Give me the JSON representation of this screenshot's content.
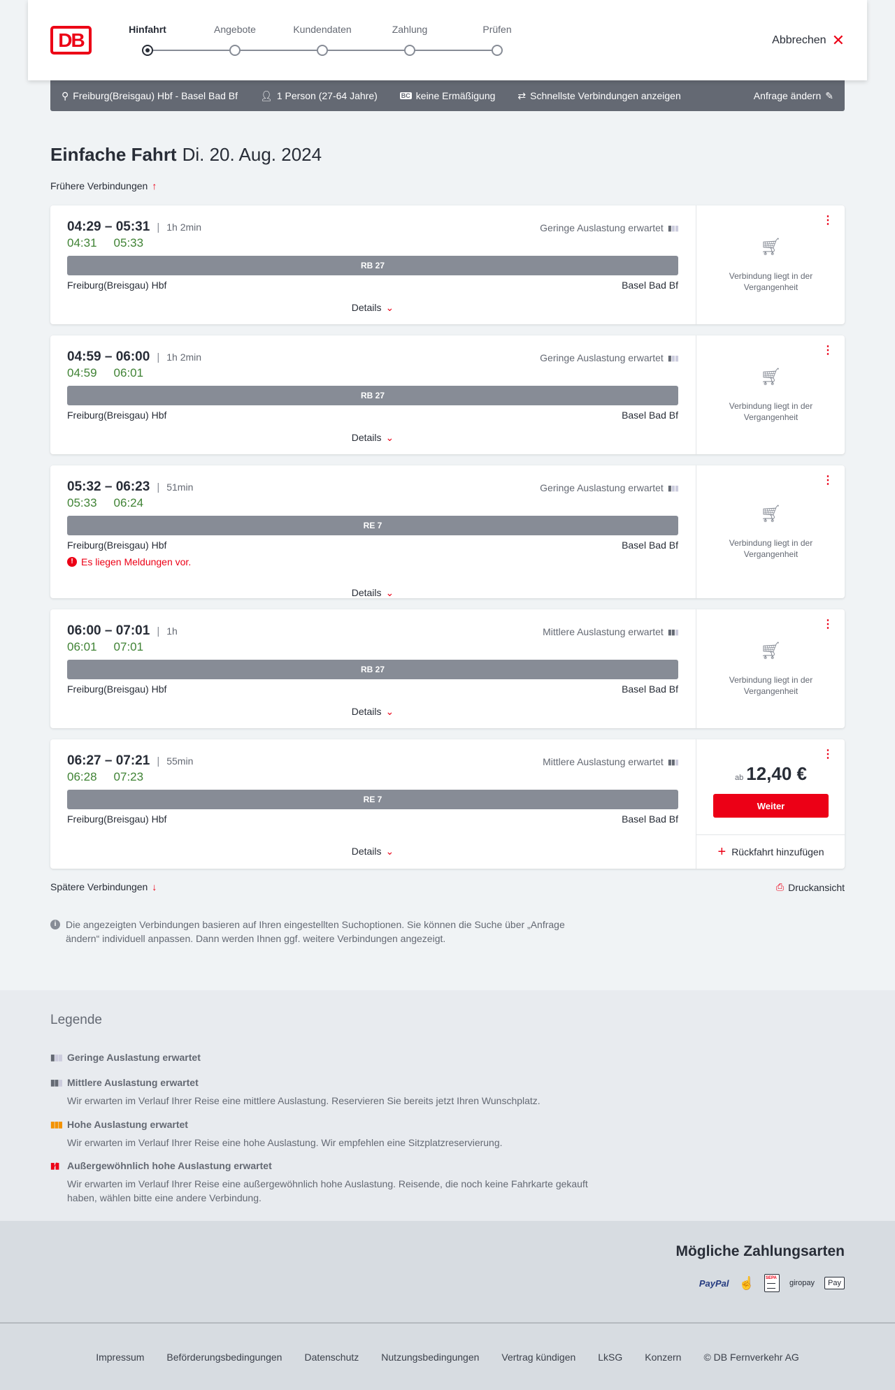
{
  "header": {
    "logo": "DB",
    "steps": [
      "Hinfahrt",
      "Angebote",
      "Kundendaten",
      "Zahlung",
      "Prüfen"
    ],
    "active_step": 0,
    "cancel": "Abbrechen"
  },
  "filter": {
    "route": "Freiburg(Breisgau) Hbf - Basel Bad Bf",
    "passengers": "1 Person (27-64 Jahre)",
    "discount": "keine Ermäßigung",
    "option": "Schnellste Verbindungen anzeigen",
    "edit": "Anfrage ändern"
  },
  "page": {
    "title": "Einfache Fahrt",
    "date": "Di. 20. Aug. 2024",
    "earlier": "Frühere Verbindungen",
    "later": "Spätere Verbindungen",
    "print": "Druckansicht",
    "info": "Die angezeigten Verbindungen basieren auf Ihren eingestellten Suchoptionen. Sie können die Suche über „Anfrage ändern“ individuell anpassen. Dann werden Ihnen ggf. weitere Verbindungen angezeigt."
  },
  "connections": [
    {
      "times": "04:29 – 05:31",
      "duration": "1h 2min",
      "rt_dep": "04:31",
      "rt_arr": "05:33",
      "load": "Geringe Auslastung erwartet",
      "train": "RB 27",
      "from": "Freiburg(Breisgau) Hbf",
      "to": "Basel Bad Bf",
      "details": "Details",
      "status": "Verbindung liegt in der Vergangenheit"
    },
    {
      "times": "04:59 – 06:00",
      "duration": "1h 2min",
      "rt_dep": "04:59",
      "rt_arr": "06:01",
      "load": "Geringe Auslastung erwartet",
      "train": "RB 27",
      "from": "Freiburg(Breisgau) Hbf",
      "to": "Basel Bad Bf",
      "details": "Details",
      "status": "Verbindung liegt in der Vergangenheit"
    },
    {
      "times": "05:32 – 06:23",
      "duration": "51min",
      "rt_dep": "05:33",
      "rt_arr": "06:24",
      "load": "Geringe Auslastung erwartet",
      "train": "RE 7",
      "from": "Freiburg(Breisgau) Hbf",
      "to": "Basel Bad Bf",
      "message": "Es liegen Meldungen vor.",
      "details": "Details",
      "status": "Verbindung liegt in der Vergangenheit"
    },
    {
      "times": "06:00 – 07:01",
      "duration": "1h",
      "rt_dep": "06:01",
      "rt_arr": "07:01",
      "load": "Mittlere Auslastung erwartet",
      "train": "RB 27",
      "from": "Freiburg(Breisgau) Hbf",
      "to": "Basel Bad Bf",
      "details": "Details",
      "status": "Verbindung liegt in der Vergangenheit"
    },
    {
      "times": "06:27 – 07:21",
      "duration": "55min",
      "rt_dep": "06:28",
      "rt_arr": "07:23",
      "load": "Mittlere Auslastung erwartet",
      "train": "RE 7",
      "from": "Freiburg(Breisgau) Hbf",
      "to": "Basel Bad Bf",
      "details": "Details",
      "price_prefix": "ab",
      "price": "12,40 €",
      "button": "Weiter",
      "return": "Rückfahrt hinzufügen"
    }
  ],
  "legend": {
    "title": "Legende",
    "items": [
      {
        "label": "Geringe Auslastung erwartet",
        "text": ""
      },
      {
        "label": "Mittlere Auslastung erwartet",
        "text": "Wir erwarten im Verlauf Ihrer Reise eine mittlere Auslastung. Reservieren Sie bereits jetzt Ihren Wunschplatz."
      },
      {
        "label": "Hohe Auslastung erwartet",
        "text": "Wir erwarten im Verlauf Ihrer Reise eine hohe Auslastung. Wir empfehlen eine Sitzplatzreservierung."
      },
      {
        "label": "Außergewöhnlich hohe Auslastung erwartet",
        "text": "Wir erwarten im Verlauf Ihrer Reise eine außergewöhnlich hohe Auslastung. Reisende, die noch keine Fahrkarte gekauft haben, wählen bitte eine andere Verbindung."
      }
    ]
  },
  "payment": {
    "title": "Mögliche Zahlungsarten",
    "methods": [
      "PayPal",
      "Kreditkarte",
      "SEPA",
      "giropay",
      "Pay"
    ]
  },
  "footer": [
    "Impressum",
    "Beförderungsbedingungen",
    "Datenschutz",
    "Nutzungsbedingungen",
    "Vertrag kündigen",
    "LkSG",
    "Konzern",
    "© DB Fernverkehr AG"
  ],
  "colors": {
    "brand": "#ec0016",
    "realtime": "#408335",
    "bar": "#878c96",
    "high_load": "#f39200"
  }
}
